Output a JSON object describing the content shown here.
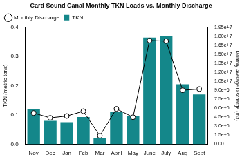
{
  "chart_data": {
    "type": "bar",
    "title": "Card Sound Canal Monthly TKN Loads vs. Monthly Discharge",
    "categories": [
      "Nov",
      "Dec",
      "Jan",
      "Feb",
      "Mar",
      "April",
      "May",
      "June",
      "July",
      "Aug",
      "Sept"
    ],
    "series": [
      {
        "name": "TKN",
        "type": "bar",
        "color": "#14878a",
        "values": [
          0.12,
          0.08,
          0.075,
          0.093,
          0.02,
          0.11,
          0.095,
          0.365,
          0.37,
          0.205,
          0.17
        ]
      },
      {
        "name": "Monthly Discharge",
        "type": "line",
        "color": "#000000",
        "marker": "circle",
        "line_style": "solid",
        "axis": "y2",
        "values": [
          5200000,
          4400000,
          4700000,
          5500000,
          1400000,
          5900000,
          4500000,
          17300000,
          17200000,
          9000000,
          9200000
        ]
      }
    ],
    "y_label": "TKN (metric tons)",
    "y2_label": "Monthly Average Discharge (m3)",
    "ylim": [
      0,
      0.4
    ],
    "yticks": [
      {
        "value": 0,
        "label": "0.0"
      },
      0.1,
      0.2,
      0.3,
      0.4
    ],
    "y2lim": [
      0,
      19500000
    ],
    "y2ticks": [
      {
        "value": 0,
        "label": "0.00"
      },
      {
        "value": 1500000,
        "label": "1.5e+6"
      },
      {
        "value": 3000000,
        "label": "3.0e+6"
      },
      {
        "value": 4500000,
        "label": "4.5e+6"
      },
      {
        "value": 6000000,
        "label": "6.0e+6"
      },
      {
        "value": 7500000,
        "label": "7.5e+6"
      },
      {
        "value": 9000000,
        "label": "9.0e+6"
      },
      {
        "value": 10500000,
        "label": "1.05e+7"
      },
      {
        "value": 12000000,
        "label": "1.20e+7"
      },
      {
        "value": 13500000,
        "label": "1.35e+7"
      },
      {
        "value": 15000000,
        "label": "1.50e+7"
      },
      {
        "value": 16500000,
        "label": "1.65e+7"
      },
      {
        "value": 18000000,
        "label": "1.80e+7"
      },
      {
        "value": 19500000,
        "label": "1.95e+7"
      }
    ],
    "grid": false,
    "legend": "upper left"
  }
}
